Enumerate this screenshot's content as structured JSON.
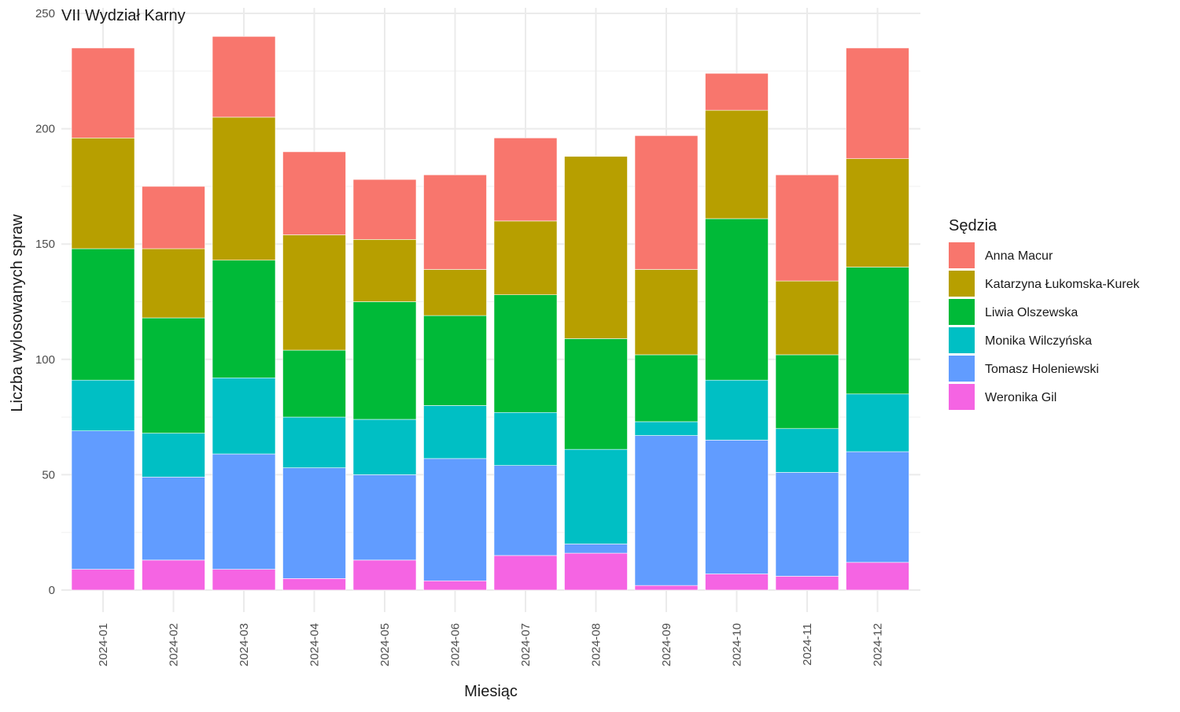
{
  "chart_data": {
    "type": "bar",
    "stacked": true,
    "title": "VII Wydział Karny",
    "xlabel": "Miesiąc",
    "ylabel": "Liczba wylosowanych spraw",
    "ylim": [
      0,
      250
    ],
    "yticks": [
      0,
      50,
      100,
      150,
      200,
      250
    ],
    "grid": true,
    "legend_title": "Sędzia",
    "legend_position": "right",
    "categories": [
      "2024-01",
      "2024-02",
      "2024-03",
      "2024-04",
      "2024-05",
      "2024-06",
      "2024-07",
      "2024-08",
      "2024-09",
      "2024-10",
      "2024-11",
      "2024-12"
    ],
    "series": [
      {
        "name": "Weronika Gil",
        "color": "#F564E3",
        "values": [
          9,
          13,
          9,
          5,
          13,
          4,
          15,
          16,
          2,
          7,
          6,
          12
        ]
      },
      {
        "name": "Tomasz Holeniewski",
        "color": "#619CFF",
        "values": [
          60,
          36,
          50,
          48,
          37,
          53,
          39,
          4,
          65,
          58,
          45,
          48
        ]
      },
      {
        "name": "Monika Wilczyńska",
        "color": "#00BFC4",
        "values": [
          22,
          19,
          33,
          22,
          24,
          23,
          23,
          41,
          6,
          26,
          19,
          25
        ]
      },
      {
        "name": "Liwia Olszewska",
        "color": "#00BA38",
        "values": [
          57,
          50,
          51,
          29,
          51,
          39,
          51,
          48,
          29,
          70,
          32,
          55
        ]
      },
      {
        "name": "Katarzyna Łukomska-Kurek",
        "color": "#B79F00",
        "values": [
          48,
          30,
          62,
          50,
          27,
          20,
          32,
          79,
          37,
          47,
          32,
          47
        ]
      },
      {
        "name": "Anna Macur",
        "color": "#F8766D",
        "values": [
          39,
          27,
          35,
          36,
          26,
          41,
          36,
          0,
          58,
          16,
          46,
          48
        ]
      }
    ],
    "legend_order": [
      "Anna Macur",
      "Katarzyna Łukomska-Kurek",
      "Liwia Olszewska",
      "Monika Wilczyńska",
      "Tomasz Holeniewski",
      "Weronika Gil"
    ]
  }
}
